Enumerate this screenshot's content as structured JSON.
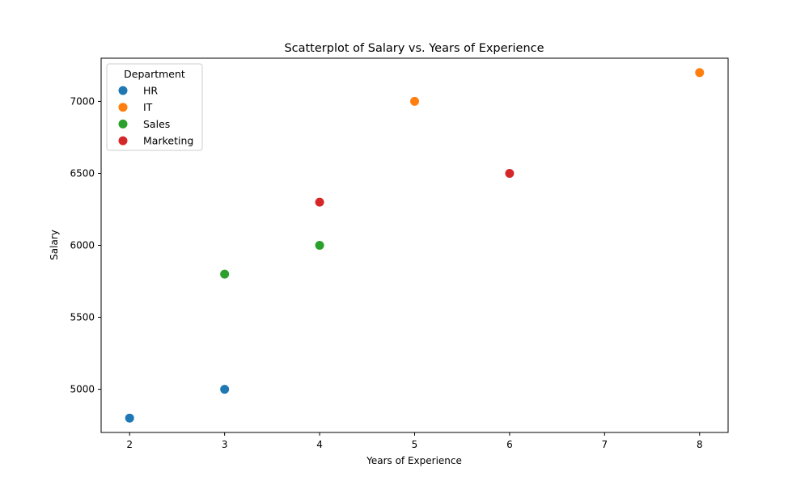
{
  "chart_data": {
    "type": "scatter",
    "title": "Scatterplot of Salary vs. Years of Experience",
    "xlabel": "Years of Experience",
    "ylabel": "Salary",
    "xlim": [
      1.7,
      8.3
    ],
    "ylim": [
      4700,
      7300
    ],
    "x_ticks": [
      2,
      3,
      4,
      5,
      6,
      7,
      8
    ],
    "y_ticks": [
      5000,
      5500,
      6000,
      6500,
      7000
    ],
    "grid": false,
    "legend": {
      "title": "Department",
      "position": "upper-left"
    },
    "series": [
      {
        "name": "HR",
        "color": "#1f77b4",
        "points": [
          {
            "x": 2,
            "y": 4800
          },
          {
            "x": 3,
            "y": 5000
          }
        ]
      },
      {
        "name": "IT",
        "color": "#ff7f0e",
        "points": [
          {
            "x": 5,
            "y": 7000
          },
          {
            "x": 8,
            "y": 7200
          }
        ]
      },
      {
        "name": "Sales",
        "color": "#2ca02c",
        "points": [
          {
            "x": 3,
            "y": 5800
          },
          {
            "x": 4,
            "y": 6000
          }
        ]
      },
      {
        "name": "Marketing",
        "color": "#d62728",
        "points": [
          {
            "x": 4,
            "y": 6300
          },
          {
            "x": 6,
            "y": 6500
          }
        ]
      }
    ]
  }
}
